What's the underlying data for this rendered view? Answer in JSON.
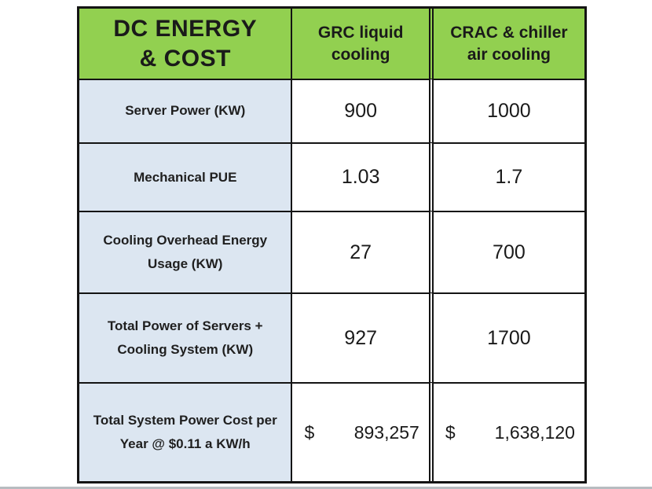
{
  "colors": {
    "header_green": "#92d050",
    "label_blue": "#dce6f1",
    "border_black": "#141414",
    "text": "#1a1a1a",
    "bottom_rule_gray": "#b7bcc0"
  },
  "table": {
    "corner_title": "DC ENERGY\n& COST",
    "col_headers": [
      {
        "label": "GRC liquid\ncooling"
      },
      {
        "label": "CRAC & chiller\nair cooling"
      }
    ],
    "rows": [
      {
        "label": "Server Power (KW)",
        "grc": "900",
        "crac": "1000"
      },
      {
        "label": "Mechanical PUE",
        "grc": "1.03",
        "crac": "1.7"
      },
      {
        "label": "Cooling Overhead Energy\nUsage (KW)",
        "grc": "27",
        "crac": "700"
      },
      {
        "label": "Total Power of Servers +\nCooling System (KW)",
        "grc": "927",
        "crac": "1700"
      },
      {
        "label": "Total System Power Cost per\nYear @ $0.11 a KW/h",
        "currency": "$",
        "grc": "893,257",
        "crac": "1,638,120"
      }
    ]
  },
  "chart_data": {
    "type": "table",
    "title": "DC ENERGY & COST",
    "columns": [
      "DC ENERGY & COST",
      "GRC liquid cooling",
      "CRAC & chiller air cooling"
    ],
    "rows": [
      {
        "metric": "Server Power (KW)",
        "grc_liquid_cooling": 900,
        "crac_chiller_air_cooling": 1000
      },
      {
        "metric": "Mechanical PUE",
        "grc_liquid_cooling": 1.03,
        "crac_chiller_air_cooling": 1.7
      },
      {
        "metric": "Cooling Overhead Energy Usage (KW)",
        "grc_liquid_cooling": 27,
        "crac_chiller_air_cooling": 700
      },
      {
        "metric": "Total Power of Servers + Cooling System (KW)",
        "grc_liquid_cooling": 927,
        "crac_chiller_air_cooling": 1700
      },
      {
        "metric": "Total System Power Cost per Year @ $0.11 a KW/h",
        "grc_liquid_cooling": "$ 893,257",
        "crac_chiller_air_cooling": "$ 1,638,120"
      }
    ]
  }
}
